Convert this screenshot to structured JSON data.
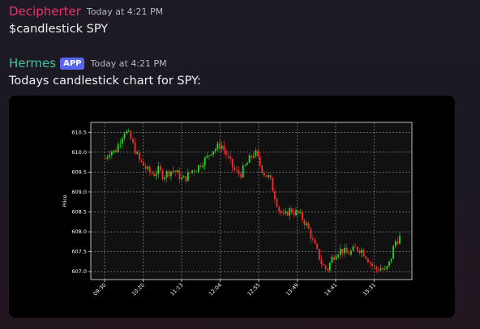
{
  "messages": [
    {
      "username": "Decipherter",
      "timestamp": "Today at 4:21 PM",
      "text": "$candlestick SPY"
    },
    {
      "username": "Hermes",
      "badge": "APP",
      "timestamp": "Today at 4:21 PM",
      "text": "Todays candlestick chart for SPY:"
    }
  ],
  "colors": {
    "user1": "#e6336e",
    "bot": "#3fc59b",
    "badge": "#5865f2",
    "up_candle": "#22dd22",
    "down_candle": "#ff2a2a"
  },
  "chart_data": {
    "type": "candlestick",
    "ylabel": "Price",
    "xtick_labels": [
      "09:30",
      "10:20",
      "11:13",
      "12:04",
      "12:55",
      "13:49",
      "14:41",
      "15:31"
    ],
    "yticks": [
      "607.0",
      "607.5",
      "608.0",
      "608.5",
      "609.0",
      "609.5",
      "610.0",
      "610.5"
    ],
    "ylim": [
      606.8,
      610.75
    ],
    "grid": true,
    "close_series": [
      609.85,
      610.05,
      610.0,
      610.3,
      610.55,
      610.4,
      610.1,
      609.8,
      609.65,
      609.5,
      609.45,
      609.55,
      609.4,
      609.5,
      609.55,
      609.45,
      609.3,
      609.4,
      609.55,
      609.6,
      609.75,
      609.85,
      610.05,
      610.1,
      610.2,
      609.95,
      609.7,
      609.5,
      609.45,
      609.65,
      609.85,
      610.0,
      609.7,
      609.45,
      609.35,
      608.95,
      608.55,
      608.35,
      608.55,
      608.5,
      608.45,
      608.3,
      608.1,
      607.75,
      607.45,
      607.15,
      607.05,
      607.35,
      607.5,
      607.55,
      607.45,
      607.5,
      607.6,
      607.55,
      607.4,
      607.2,
      607.05,
      607.1,
      607.0,
      607.25,
      607.75,
      607.85
    ]
  }
}
